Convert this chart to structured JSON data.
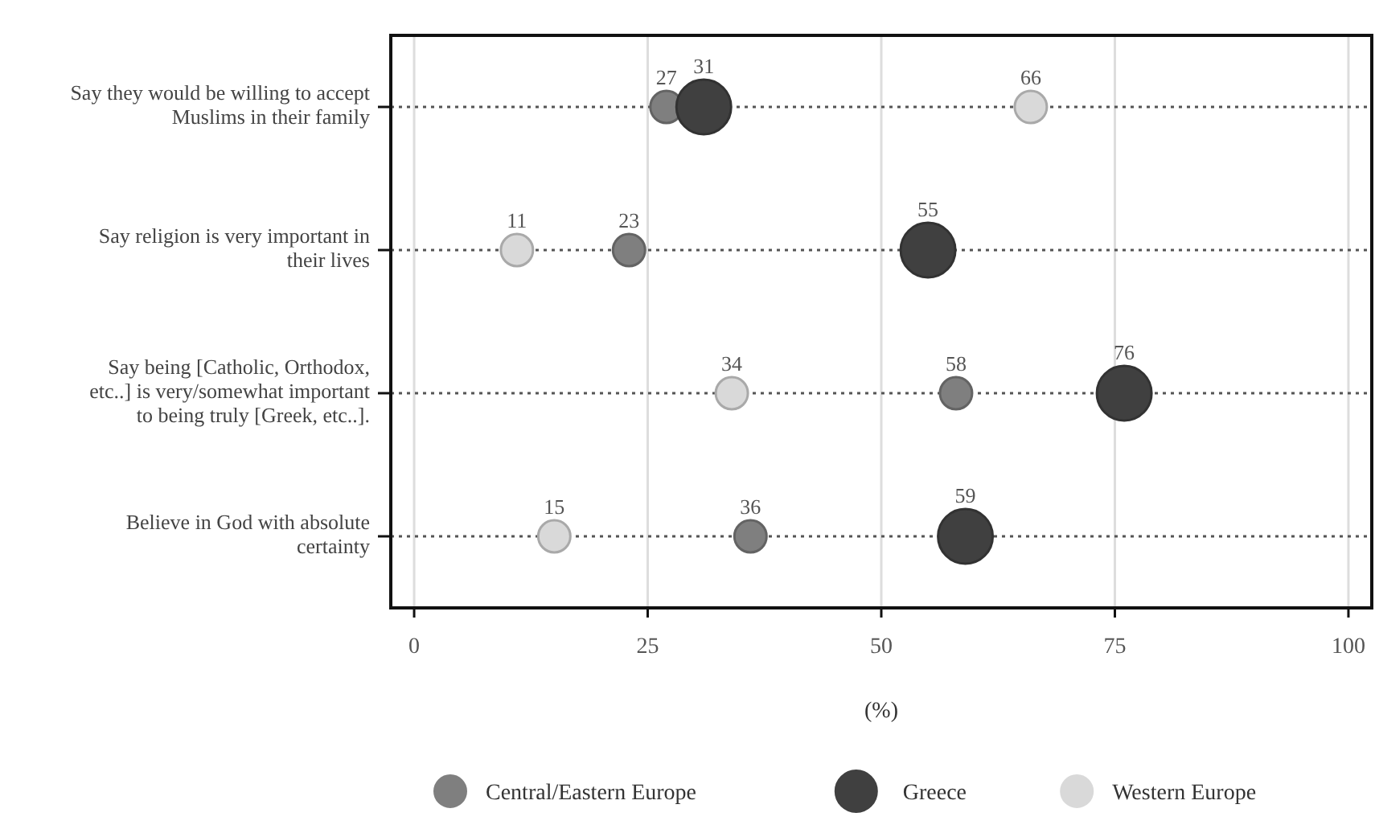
{
  "chart_data": {
    "type": "scatter",
    "orientation": "horizontal",
    "categories": [
      "Say they would be willing to accept Muslims in their family",
      "Say religion is very important in their lives",
      "Say being [Catholic, Orthodox, etc..] is very/somewhat important to being truly [Greek, etc..].",
      "Believe in God with absolute certainty"
    ],
    "series": [
      {
        "name": "Central/Eastern Europe",
        "color": "#7f7f7f",
        "values": [
          27,
          23,
          58,
          36
        ]
      },
      {
        "name": "Greece",
        "color": "#404040",
        "values": [
          31,
          55,
          76,
          59
        ]
      },
      {
        "name": "Western Europe",
        "color": "#d9d9d9",
        "values": [
          66,
          11,
          34,
          15
        ]
      }
    ],
    "xlabel": "(%)",
    "xlim": [
      -2.5,
      102.5
    ],
    "xticks": [
      0,
      25,
      50,
      75,
      100
    ],
    "grid": true,
    "legend": "bottom",
    "data_labels": true,
    "marker": "circle",
    "line_style": "dotted"
  }
}
